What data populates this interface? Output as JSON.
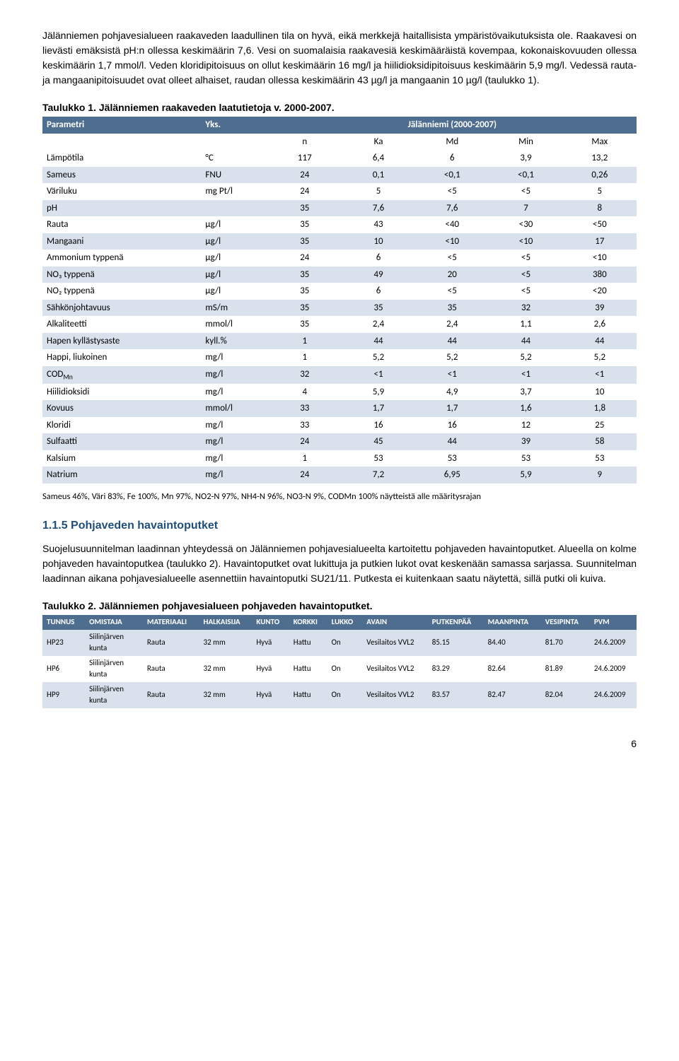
{
  "intro_para": "Jälänniemen pohjavesialueen raakaveden laadullinen tila on hyvä, eikä merkkejä haitallisista ympäristövaikutuksista ole. Raakavesi on lievästi emäksistä pH:n ollessa keskimäärin 7,6. Vesi on suomalaisia raakavesiä keskimääräistä kovempaa, kokonaiskovuuden ollessa keskimäärin 1,7 mmol/l. Veden kloridipitoisuus on ollut keskimäärin 16 mg/l ja hiilidioksidipitoisuus keskimäärin 5,9 mg/l. Vedessä rauta- ja mangaanipitoisuudet ovat olleet alhaiset, raudan ollessa keskimäärin 43 µg/l ja mangaanin 10 µg/l (taulukko 1).",
  "table1_caption": "Taulukko 1. Jälänniemen raakaveden laatutietoja v. 2000-2007.",
  "table1": {
    "header": [
      "Parametri",
      "Yks.",
      "Jälänniemi (2000-2007)"
    ],
    "sub_cols": [
      "n",
      "Ka",
      "Md",
      "Min",
      "Max"
    ],
    "rows": [
      {
        "p": "Lämpötila",
        "u": "°C",
        "v": [
          "117",
          "6,4",
          "6",
          "3,9",
          "13,2"
        ]
      },
      {
        "p": "Sameus",
        "u": "FNU",
        "v": [
          "24",
          "0,1",
          "<0,1",
          "<0,1",
          "0,26"
        ]
      },
      {
        "p": "Väriluku",
        "u": "mg Pt/l",
        "v": [
          "24",
          "5",
          "<5",
          "<5",
          "5"
        ]
      },
      {
        "p": "pH",
        "u": "",
        "v": [
          "35",
          "7,6",
          "7,6",
          "7",
          "8"
        ]
      },
      {
        "p": "Rauta",
        "u": "µg/l",
        "v": [
          "35",
          "43",
          "<40",
          "<30",
          "<50"
        ]
      },
      {
        "p": "Mangaani",
        "u": "µg/l",
        "v": [
          "35",
          "10",
          "<10",
          "<10",
          "17"
        ]
      },
      {
        "p": "Ammonium typpenä",
        "u": "µg/l",
        "v": [
          "24",
          "6",
          "<5",
          "<5",
          "<10"
        ]
      },
      {
        "p": "NO₃ typpenä",
        "u": "µg/l",
        "v": [
          "35",
          "49",
          "20",
          "<5",
          "380"
        ]
      },
      {
        "p": "NO₂ typpenä",
        "u": "µg/l",
        "v": [
          "35",
          "6",
          "<5",
          "<5",
          "<20"
        ]
      },
      {
        "p": "Sähkönjohtavuus",
        "u": "mS/m",
        "v": [
          "35",
          "35",
          "35",
          "32",
          "39"
        ]
      },
      {
        "p": "Alkaliteetti",
        "u": "mmol/l",
        "v": [
          "35",
          "2,4",
          "2,4",
          "1,1",
          "2,6"
        ]
      },
      {
        "p": "Hapen kyllästysaste",
        "u": "kyll.%",
        "v": [
          "1",
          "44",
          "44",
          "44",
          "44"
        ]
      },
      {
        "p": "Happi, liukoinen",
        "u": "mg/l",
        "v": [
          "1",
          "5,2",
          "5,2",
          "5,2",
          "5,2"
        ]
      },
      {
        "p": "CODMn",
        "u": "mg/l",
        "v": [
          "32",
          "<1",
          "<1",
          "<1",
          "<1"
        ]
      },
      {
        "p": "Hiilidioksidi",
        "u": "mg/l",
        "v": [
          "4",
          "5,9",
          "4,9",
          "3,7",
          "10"
        ]
      },
      {
        "p": "Kovuus",
        "u": "mmol/l",
        "v": [
          "33",
          "1,7",
          "1,7",
          "1,6",
          "1,8"
        ]
      },
      {
        "p": "Kloridi",
        "u": "mg/l",
        "v": [
          "33",
          "16",
          "16",
          "12",
          "25"
        ]
      },
      {
        "p": "Sulfaatti",
        "u": "mg/l",
        "v": [
          "24",
          "45",
          "44",
          "39",
          "58"
        ]
      },
      {
        "p": "Kalsium",
        "u": "mg/l",
        "v": [
          "1",
          "53",
          "53",
          "53",
          "53"
        ]
      },
      {
        "p": "Natrium",
        "u": "mg/l",
        "v": [
          "24",
          "7,2",
          "6,95",
          "5,9",
          "9"
        ]
      }
    ],
    "shade_even": true,
    "header_bg": "#4f6d8f",
    "shade_bg": "#d9e1ec"
  },
  "table1_footnote": "Sameus 46%, Väri 83%, Fe 100%, Mn 97%, NO2-N 97%, NH4-N 96%, NO3-N 9%, CODMn 100% näytteistä alle määritysrajan",
  "section_115_title": "1.1.5 Pohjaveden havaintoputket",
  "section_115_para": "Suojelusuunnitelman laadinnan yhteydessä on Jälänniemen pohjavesialueelta kartoitettu pohjaveden havaintoputket. Alueella on kolme pohjaveden havaintoputkea (taulukko 2). Havaintoputket ovat lukittuja ja putkien lukot ovat keskenään samassa sarjassa. Suunnitelman laadinnan aikana pohjavesialueelle asennettiin havaintoputki SU21/11. Putkesta ei kuitenkaan saatu näytettä, sillä putki oli kuiva.",
  "table2_caption": "Taulukko 2. Jälänniemen pohjavesialueen pohjaveden havaintoputket.",
  "table2": {
    "cols": [
      "TUNNUS",
      "OMISTAJA",
      "MATERIAALI",
      "HALKAISIJA",
      "KUNTO",
      "KORKKI",
      "LUKKO",
      "AVAIN",
      "PUTKENPÄÄ",
      "MAANPINTA",
      "VESIPINTA",
      "PVM"
    ],
    "rows": [
      [
        "HP23",
        "Siilinjärven kunta",
        "Rauta",
        "32 mm",
        "Hyvä",
        "Hattu",
        "On",
        "Vesilaitos VVL2",
        "85.15",
        "84.40",
        "81.70",
        "24.6.2009"
      ],
      [
        "HP6",
        "Siilinjärven kunta",
        "Rauta",
        "32 mm",
        "Hyvä",
        "Hattu",
        "On",
        "Vesilaitos VVL2",
        "83.29",
        "82.64",
        "81.89",
        "24.6.2009"
      ],
      [
        "HP9",
        "Siilinjärven kunta",
        "Rauta",
        "32 mm",
        "Hyvä",
        "Hattu",
        "On",
        "Vesilaitos VVL2",
        "83.57",
        "82.47",
        "82.04",
        "24.6.2009"
      ]
    ],
    "header_bg": "#4f6d8f",
    "shade_bg": "#d9e1ec"
  },
  "page_number": "6"
}
